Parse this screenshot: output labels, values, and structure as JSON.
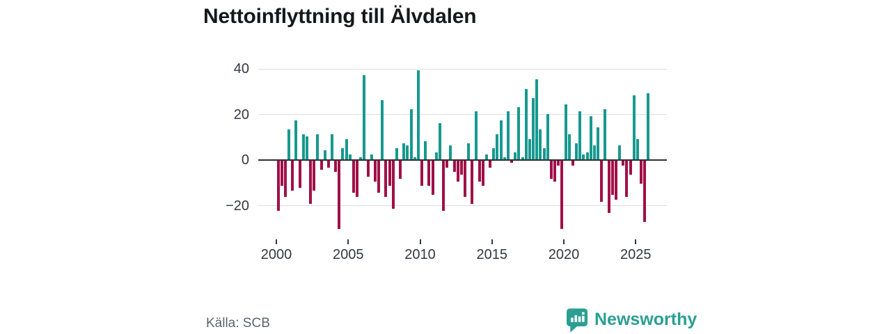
{
  "title": "Nettoinflyttning till Älvdalen",
  "source": "Källa: SCB",
  "branding": {
    "name": "Newsworthy",
    "logo": "newsworthy-speech-bubble-bar-chart"
  },
  "chart_data": {
    "type": "bar",
    "title": "Nettoinflyttning till Älvdalen",
    "x_unit": "quarter",
    "x_start": "2000-Q1",
    "x_end": "2025-Q4",
    "x_tick_years": [
      2000,
      2005,
      2010,
      2015,
      2020,
      2025
    ],
    "y_ticks": [
      40,
      20,
      0,
      -20
    ],
    "ylim": [
      -33,
      43
    ],
    "grid": "horizontal",
    "legend": false,
    "colors": {
      "positive": "#17998f",
      "negative": "#a01048",
      "zero_line": "#2e2e2e",
      "gridline": "#dddddd"
    },
    "quarters": [
      {
        "year": 2000,
        "q": [
          -22,
          -11,
          -16,
          13
        ]
      },
      {
        "year": 2001,
        "q": [
          -13,
          17,
          -12,
          11
        ]
      },
      {
        "year": 2002,
        "q": [
          10,
          -19,
          -13,
          11
        ]
      },
      {
        "year": 2003,
        "q": [
          -4,
          4,
          -3,
          11
        ]
      },
      {
        "year": 2004,
        "q": [
          -5,
          -30,
          5,
          9
        ]
      },
      {
        "year": 2005,
        "q": [
          2,
          -14,
          -16,
          1
        ]
      },
      {
        "year": 2006,
        "q": [
          37,
          -7,
          2,
          -9
        ]
      },
      {
        "year": 2007,
        "q": [
          -14,
          26,
          -16,
          -11
        ]
      },
      {
        "year": 2008,
        "q": [
          -21,
          5,
          -8,
          7
        ]
      },
      {
        "year": 2009,
        "q": [
          6,
          22,
          1,
          39
        ]
      },
      {
        "year": 2010,
        "q": [
          -11,
          8,
          -11,
          -15
        ]
      },
      {
        "year": 2011,
        "q": [
          3,
          16,
          -22,
          -3
        ]
      },
      {
        "year": 2012,
        "q": [
          6,
          -5,
          -9,
          -6
        ]
      },
      {
        "year": 2013,
        "q": [
          -16,
          7,
          -19,
          21
        ]
      },
      {
        "year": 2014,
        "q": [
          -9,
          -11,
          2,
          -3
        ]
      },
      {
        "year": 2015,
        "q": [
          5,
          11,
          17,
          1
        ]
      },
      {
        "year": 2016,
        "q": [
          21,
          -1,
          3,
          23
        ]
      },
      {
        "year": 2017,
        "q": [
          1,
          31,
          9,
          27
        ]
      },
      {
        "year": 2018,
        "q": [
          35,
          13,
          5,
          20
        ]
      },
      {
        "year": 2019,
        "q": [
          -8,
          -9,
          -2,
          -30
        ]
      },
      {
        "year": 2020,
        "q": [
          24,
          11,
          -2,
          7
        ]
      },
      {
        "year": 2021,
        "q": [
          21,
          2,
          3,
          19
        ]
      },
      {
        "year": 2022,
        "q": [
          6,
          14,
          -18,
          22
        ]
      },
      {
        "year": 2023,
        "q": [
          -23,
          -15,
          -17,
          6
        ]
      },
      {
        "year": 2024,
        "q": [
          -2,
          -16,
          -6,
          28
        ]
      },
      {
        "year": 2025,
        "q": [
          9,
          -10,
          -27,
          29
        ]
      }
    ]
  }
}
